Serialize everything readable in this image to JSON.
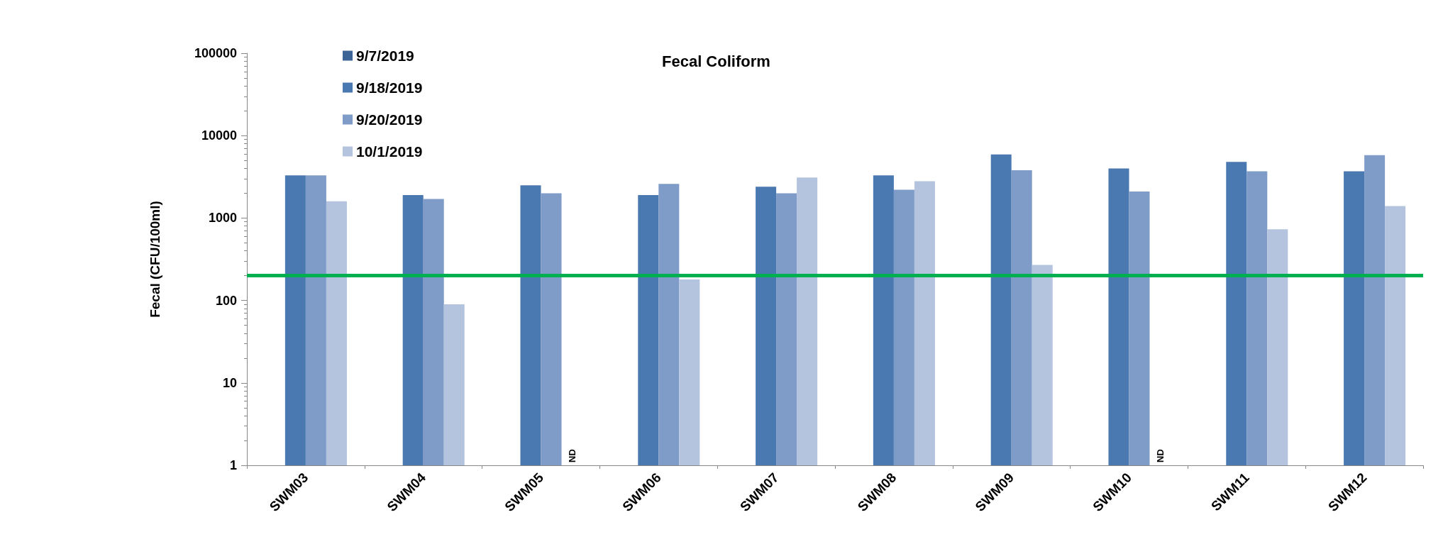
{
  "chart_data": {
    "type": "bar",
    "title": "Fecal Coliform",
    "ylabel": "Fecal (CFU/100ml)",
    "categories": [
      "SWM03",
      "SWM04",
      "SWM05",
      "SWM06",
      "SWM07",
      "SWM08",
      "SWM09",
      "SWM10",
      "SWM11",
      "SWM12"
    ],
    "series": [
      {
        "name": "9/7/2019",
        "color": "#3d6496",
        "values": [
          null,
          null,
          null,
          null,
          null,
          null,
          null,
          null,
          null,
          null
        ]
      },
      {
        "name": "9/18/2019",
        "color": "#4a78b0",
        "values": [
          3300,
          1900,
          2500,
          1900,
          2400,
          3300,
          5900,
          4000,
          4800,
          3700
        ]
      },
      {
        "name": "9/20/2019",
        "color": "#7f9cc8",
        "values": [
          3300,
          1700,
          2000,
          2600,
          2000,
          2200,
          3800,
          2100,
          3700,
          5800
        ]
      },
      {
        "name": "10/1/2019",
        "color": "#b4c3de",
        "values": [
          1600,
          90,
          null,
          180,
          3100,
          2800,
          270,
          null,
          730,
          1400
        ]
      }
    ],
    "log": true,
    "ylim": [
      1,
      100000
    ],
    "yticks": [
      1,
      10,
      100,
      1000,
      10000,
      100000
    ],
    "ref_lines": [
      {
        "axis": "y",
        "value": 200,
        "color": "#00b050"
      }
    ],
    "annotations": [
      {
        "text": "ND",
        "x": "SWM05",
        "y": 1
      },
      {
        "text": "ND",
        "x": "SWM10",
        "y": 1
      }
    ],
    "legend": "top left",
    "grid": false
  }
}
